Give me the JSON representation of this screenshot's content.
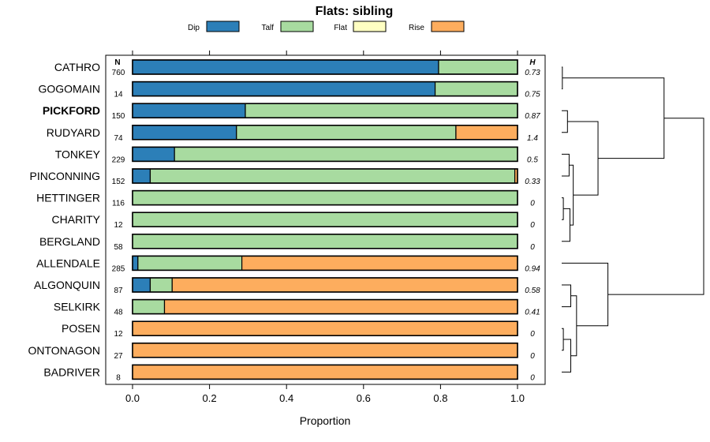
{
  "chart_data": {
    "type": "bar",
    "orientation": "horizontal",
    "stacked": true,
    "title": "Flats: sibling",
    "xlabel": "Proportion",
    "ylabel": "",
    "xlim": [
      0,
      1
    ],
    "xticks": [
      "0.0",
      "0.2",
      "0.4",
      "0.6",
      "0.8",
      "1.0"
    ],
    "xtick_values": [
      0,
      0.2,
      0.4,
      0.6,
      0.8,
      1.0
    ],
    "legend": {
      "position": "top",
      "entries": [
        {
          "name": "Dip",
          "color": "#2c7fb8"
        },
        {
          "name": "Talf",
          "color": "#a8dba0"
        },
        {
          "name": "Flat",
          "color": "#ffffc2"
        },
        {
          "name": "Rise",
          "color": "#fdad5e"
        }
      ]
    },
    "n_header": "N",
    "h_header": "H",
    "highlighted_category": "PICKFORD",
    "categories": [
      "CATHRO",
      "GOGOMAIN",
      "PICKFORD",
      "RUDYARD",
      "TONKEY",
      "PINCONNING",
      "HETTINGER",
      "CHARITY",
      "BERGLAND",
      "ALLENDALE",
      "ALGONQUIN",
      "SELKIRK",
      "POSEN",
      "ONTONAGON",
      "BADRIVER"
    ],
    "n_values": [
      "760",
      "14",
      "150",
      "74",
      "229",
      "152",
      "116",
      "12",
      "58",
      "285",
      "87",
      "48",
      "12",
      "27",
      "8"
    ],
    "h_values": [
      "0.73",
      "0.75",
      "0.87",
      "1.4",
      "0.5",
      "0.33",
      "0",
      "0",
      "0",
      "0.94",
      "0.58",
      "0.41",
      "0",
      "0",
      "0"
    ],
    "series": [
      {
        "name": "Dip",
        "values": [
          0.795,
          0.786,
          0.293,
          0.27,
          0.109,
          0.046,
          0,
          0,
          0,
          0.014,
          0.046,
          0,
          0,
          0,
          0
        ]
      },
      {
        "name": "Talf",
        "values": [
          0.205,
          0.214,
          0.707,
          0.57,
          0.891,
          0.947,
          1,
          1,
          1,
          0.27,
          0.057,
          0.083,
          0,
          0,
          0
        ]
      },
      {
        "name": "Flat",
        "values": [
          0,
          0,
          0,
          0,
          0,
          0,
          0,
          0,
          0,
          0,
          0,
          0,
          0,
          0,
          0
        ]
      },
      {
        "name": "Rise",
        "values": [
          0,
          0,
          0,
          0.16,
          0,
          0.007,
          0,
          0,
          0,
          0.716,
          0.897,
          0.917,
          1,
          1,
          1
        ]
      }
    ],
    "dendrogram": {
      "merges": [
        [
          0,
          1
        ],
        [
          6,
          7
        ],
        [
          12,
          13
        ],
        [
          2,
          3
        ],
        [
          4,
          5
        ],
        [
          -2,
          8
        ],
        [
          10,
          11
        ],
        [
          -3,
          14
        ],
        [
          -6,
          -5
        ],
        [
          -7,
          -8
        ],
        [
          -4,
          -9
        ],
        [
          9,
          -10
        ],
        [
          -1,
          -11
        ],
        [
          -13,
          -12
        ]
      ],
      "heights": [
        0.004,
        0.01,
        0.01,
        0.035,
        0.045,
        0.05,
        0.055,
        0.055,
        0.07,
        0.09,
        0.22,
        0.28,
        0.62,
        0.86
      ]
    }
  }
}
